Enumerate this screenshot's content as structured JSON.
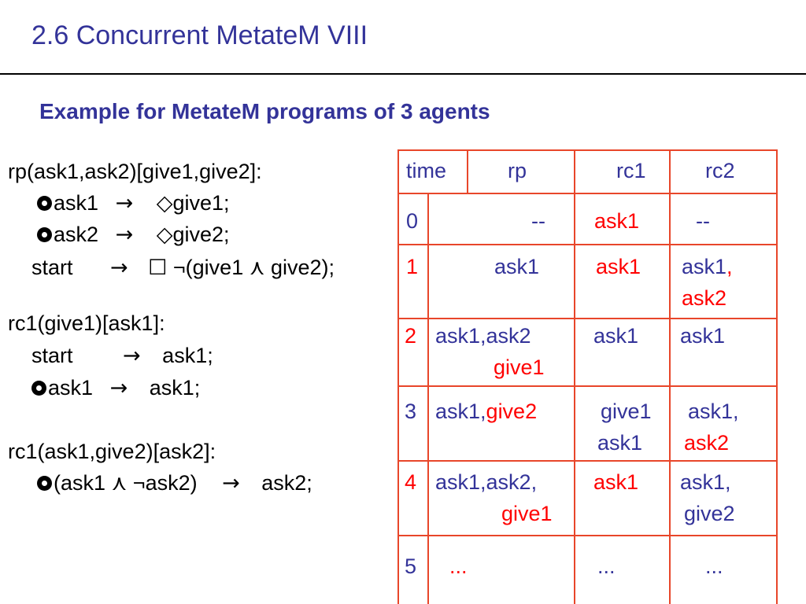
{
  "slide": {
    "title": "2.6 Concurrent MetateM VIII",
    "subtitle": "Example for MetateM programs of 3 agents"
  },
  "programs": {
    "rp": {
      "header": "rp(ask1,ask2)[give1,give2]:",
      "rule1": {
        "lhs": "ask1",
        "arrow": "→",
        "op": "◇",
        "rhs": "give1;"
      },
      "rule2": {
        "lhs": "ask2",
        "arrow": "→",
        "op": "◇",
        "rhs": "give2;"
      },
      "rule3": {
        "lhs": "start",
        "arrow": "→",
        "op": "☐",
        "rhs": "¬(give1 ⋏ give2);"
      }
    },
    "rc1": {
      "header": "rc1(give1)[ask1]:",
      "rule1": {
        "lhs": "start",
        "arrow": "→",
        "rhs": "ask1;"
      },
      "rule2": {
        "lhs": "ask1",
        "arrow": "→",
        "rhs": "ask1;"
      }
    },
    "rc2": {
      "header": "rc1(ask1,give2)[ask2]:",
      "rule1": {
        "lhs": "(ask1 ⋏ ¬ask2)",
        "arrow": "→",
        "rhs": "ask2;"
      }
    }
  },
  "table": {
    "headers": [
      "time",
      "rp",
      "rc1",
      "rc2"
    ],
    "rows": [
      {
        "time": "0",
        "rp": [
          "--"
        ],
        "rc1": [
          "ask1"
        ],
        "rc2": [
          "--"
        ]
      },
      {
        "time": "1",
        "rp": [
          "ask1"
        ],
        "rc1": [
          "ask1"
        ],
        "rc2": [
          "ask1",
          ",",
          "ask2"
        ]
      },
      {
        "time": "2",
        "rp": [
          "ask1,ask2",
          "give1"
        ],
        "rc1": [
          "ask1"
        ],
        "rc2": [
          "ask1"
        ]
      },
      {
        "time": "3",
        "rp": [
          "ask1,",
          "give2"
        ],
        "rc1": [
          "give1",
          "ask1"
        ],
        "rc2": [
          "ask1,",
          "ask2"
        ]
      },
      {
        "time": "4",
        "rp": [
          "ask1,ask2,",
          "give1"
        ],
        "rc1": [
          "ask1"
        ],
        "rc2": [
          "ask1,",
          "give2"
        ]
      },
      {
        "time": "5",
        "rp": [
          "..."
        ],
        "rc1": [
          "..."
        ],
        "rc2": [
          "..."
        ]
      }
    ]
  },
  "colors": {
    "title": "#333399",
    "red": "#ff0000",
    "grid": "#e8462a"
  }
}
